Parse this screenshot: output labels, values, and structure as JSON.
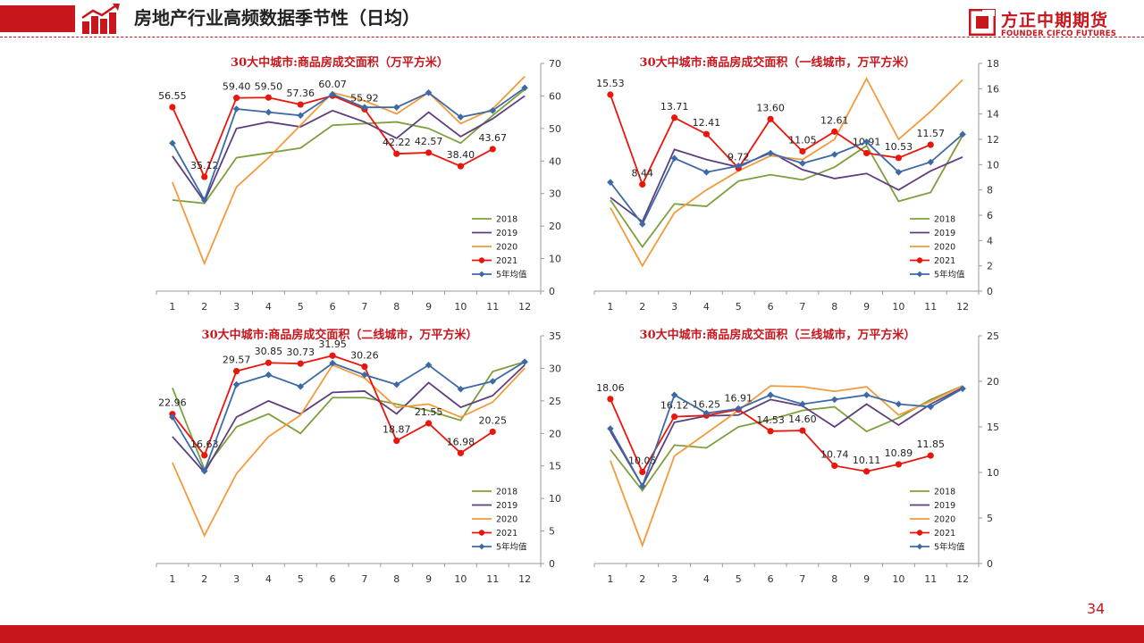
{
  "header": {
    "title": "房地产行业高频数据季节性（日均）"
  },
  "logo": {
    "name_cn": "方正中期期货",
    "name_en": "FOUNDER CIFCO FUTURES"
  },
  "page_number": "34",
  "colors": {
    "brand_red": "#c8161d",
    "s2018": "#7f9f3c",
    "s2019": "#5e3f7e",
    "s2020": "#f39a3c",
    "s2021": "#e8160c",
    "avg": "#3d6aa6"
  },
  "chart_data": [
    {
      "type": "line",
      "title": "30大中城市:商品房成交面积（万平方米）",
      "categories": [
        "1",
        "2",
        "3",
        "4",
        "5",
        "6",
        "7",
        "8",
        "9",
        "10",
        "11",
        "12"
      ],
      "ylim": [
        0,
        70
      ],
      "yticks": [
        "0",
        "10",
        "20",
        "30",
        "40",
        "50",
        "60",
        "70"
      ],
      "grid": false,
      "legend": "bottom-right",
      "series": [
        {
          "name": "2018",
          "values": [
            28,
            27,
            41,
            42.5,
            44,
            51,
            51.5,
            52,
            50,
            45.5,
            54,
            62
          ]
        },
        {
          "name": "2019",
          "values": [
            41.5,
            27.5,
            50,
            52,
            50.5,
            55.5,
            52,
            47,
            55,
            47.5,
            53,
            60
          ]
        },
        {
          "name": "2020",
          "values": [
            33.5,
            8.5,
            32,
            41,
            51,
            61,
            58.5,
            54.5,
            61,
            51.5,
            56,
            66
          ]
        },
        {
          "name": "2021",
          "values": [
            56.55,
            35.12,
            59.4,
            59.5,
            57.36,
            60.07,
            55.92,
            42.22,
            42.57,
            38.4,
            43.67,
            null
          ],
          "labels": [
            "56.55",
            "35.12",
            "59.40",
            "59.50",
            "57.36",
            "60.07",
            "55.92",
            "42.22",
            "42.57",
            "38.40",
            "43.67",
            null
          ]
        },
        {
          "name": "5年均值",
          "values": [
            45.5,
            28,
            56,
            55,
            54,
            60.5,
            56.5,
            56.5,
            61,
            53.5,
            55.5,
            62.5
          ]
        }
      ]
    },
    {
      "type": "line",
      "title": "30大中城市:商品房成交面积（一线城市，万平方米）",
      "categories": [
        "1",
        "2",
        "3",
        "4",
        "5",
        "6",
        "7",
        "8",
        "9",
        "10",
        "11",
        "12"
      ],
      "ylim": [
        0,
        18
      ],
      "yticks": [
        "0",
        "2",
        "4",
        "6",
        "8",
        "10",
        "12",
        "14",
        "16",
        "18"
      ],
      "grid": false,
      "legend": "bottom-right",
      "series": [
        {
          "name": "2018",
          "values": [
            7.2,
            3.5,
            6.9,
            6.7,
            8.7,
            9.2,
            8.8,
            9.8,
            11.5,
            7.1,
            7.8,
            12.3
          ]
        },
        {
          "name": "2019",
          "values": [
            7.4,
            5.5,
            11.2,
            10.4,
            9.8,
            11.0,
            9.6,
            8.9,
            9.3,
            8.0,
            9.5,
            10.6
          ]
        },
        {
          "name": "2020",
          "values": [
            6.6,
            2.0,
            6.2,
            8.0,
            9.5,
            10.7,
            10.4,
            12.0,
            16.8,
            12.0,
            14.2,
            16.7
          ]
        },
        {
          "name": "2021",
          "values": [
            15.53,
            8.44,
            13.71,
            12.41,
            9.72,
            13.6,
            11.05,
            12.61,
            10.91,
            10.53,
            11.57,
            null
          ],
          "labels": [
            "15.53",
            "8.44",
            "13.71",
            "12.41",
            "9.72",
            "13.60",
            "11.05",
            "12.61",
            "10.91",
            "10.53",
            "11.57",
            null
          ]
        },
        {
          "name": "5年均值",
          "values": [
            8.6,
            5.3,
            10.5,
            9.4,
            9.9,
            10.9,
            10.1,
            10.8,
            11.8,
            9.4,
            10.2,
            12.4
          ]
        }
      ]
    },
    {
      "type": "line",
      "title": "30大中城市:商品房成交面积（二线城市，万平方米）",
      "categories": [
        "1",
        "2",
        "3",
        "4",
        "5",
        "6",
        "7",
        "8",
        "9",
        "10",
        "11",
        "12"
      ],
      "ylim": [
        0,
        35
      ],
      "yticks": [
        "0",
        "5",
        "10",
        "15",
        "20",
        "25",
        "30",
        "35"
      ],
      "grid": false,
      "legend": "bottom-right",
      "series": [
        {
          "name": "2018",
          "values": [
            27,
            14.5,
            21,
            23,
            20,
            25.5,
            25.5,
            24.5,
            23.5,
            22,
            29.5,
            31
          ]
        },
        {
          "name": "2019",
          "values": [
            19.5,
            14,
            22.5,
            25,
            23,
            26.3,
            26.5,
            23,
            27.8,
            24,
            25.8,
            30.5
          ]
        },
        {
          "name": "2020",
          "values": [
            15.5,
            4.3,
            13.8,
            19.5,
            22.8,
            30.5,
            28.5,
            24,
            24.5,
            22.5,
            24.8,
            30
          ]
        },
        {
          "name": "2021",
          "values": [
            22.96,
            16.63,
            29.57,
            30.85,
            30.73,
            31.95,
            30.26,
            18.87,
            21.55,
            16.98,
            20.25,
            null
          ],
          "labels": [
            "22.96",
            "16.63",
            "29.57",
            "30.85",
            "30.73",
            "31.95",
            "30.26",
            "18.87",
            "21.55",
            "16.98",
            "20.25",
            null
          ]
        },
        {
          "name": "5年均值",
          "values": [
            22.5,
            14.2,
            27.5,
            29,
            27.2,
            30.8,
            29,
            27.5,
            30.5,
            26.8,
            28,
            31
          ]
        }
      ]
    },
    {
      "type": "line",
      "title": "30大中城市:商品房成交面积（三线城市，万平方米）",
      "categories": [
        "1",
        "2",
        "3",
        "4",
        "5",
        "6",
        "7",
        "8",
        "9",
        "10",
        "11",
        "12"
      ],
      "ylim": [
        0,
        25
      ],
      "yticks": [
        "0",
        "5",
        "10",
        "15",
        "20",
        "25"
      ],
      "grid": false,
      "legend": "bottom-right",
      "series": [
        {
          "name": "2018",
          "values": [
            12.5,
            8,
            13,
            12.7,
            15,
            15.8,
            16.8,
            17.2,
            14.5,
            16,
            18,
            19.5
          ]
        },
        {
          "name": "2019",
          "values": [
            14.5,
            8.5,
            15.5,
            16.2,
            16.3,
            18,
            17.3,
            15,
            17.5,
            15.2,
            17.5,
            19.3
          ]
        },
        {
          "name": "2020",
          "values": [
            11.3,
            2,
            11.8,
            14.3,
            16.8,
            19.5,
            19.4,
            18.9,
            19.4,
            16.3,
            17.8,
            19.5
          ]
        },
        {
          "name": "2021",
          "values": [
            18.06,
            10.05,
            16.12,
            16.25,
            16.91,
            14.53,
            14.6,
            10.74,
            10.11,
            10.89,
            11.85,
            null
          ],
          "labels": [
            "18.06",
            "10.05",
            "16.12",
            "16.25",
            "16.91",
            "14.53",
            "14.60",
            "10.74",
            "10.11",
            "10.89",
            "11.85",
            null
          ]
        },
        {
          "name": "5年均值",
          "values": [
            14.8,
            8.5,
            18.5,
            16.5,
            17,
            18.5,
            17.5,
            18,
            18.5,
            17.5,
            17.2,
            19.2
          ]
        }
      ]
    }
  ]
}
